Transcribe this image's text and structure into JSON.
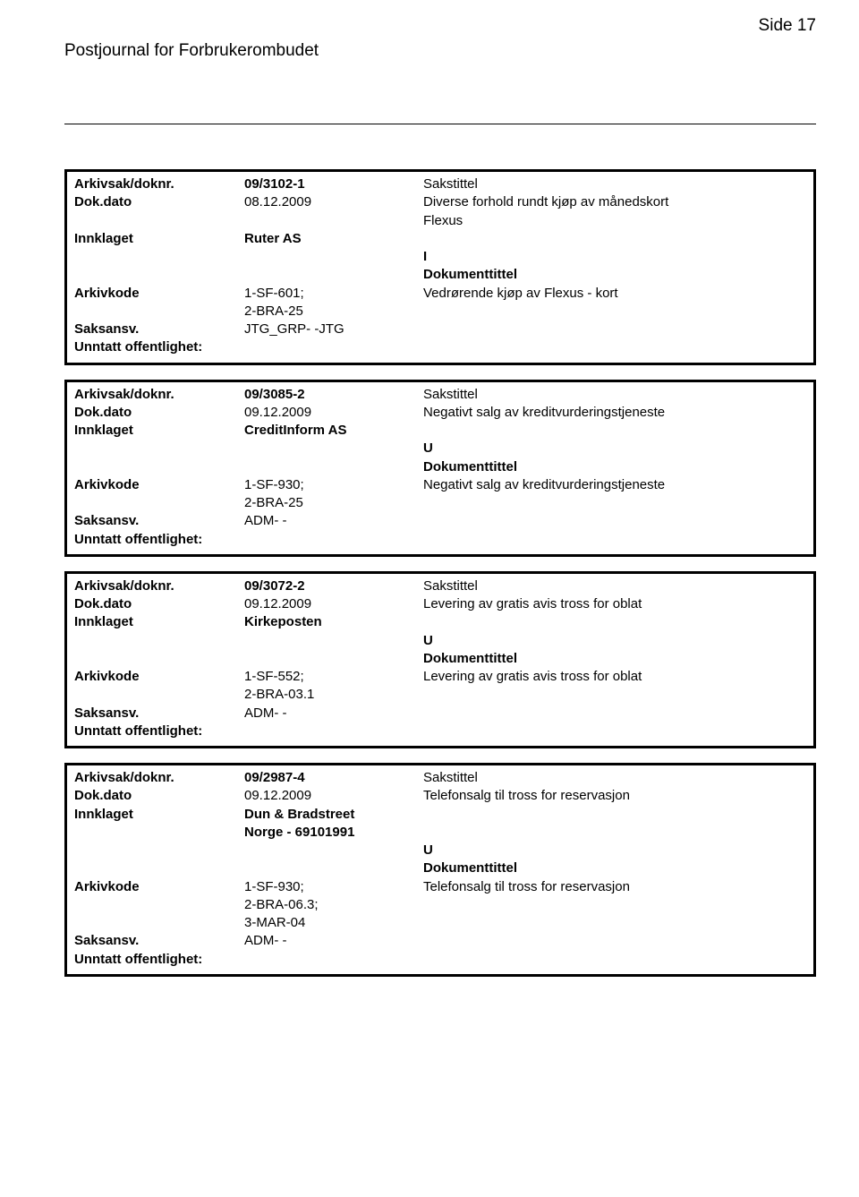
{
  "header": {
    "title": "Postjournal for Forbrukerombudet",
    "page_label": "Side 17"
  },
  "records": [
    {
      "arkivsak_label": "Arkivsak/doknr.",
      "arkivsak_value": "09/3102-1",
      "sakstittel_label": "Sakstittel",
      "dokdato_label": "Dok.dato",
      "dokdato_value": "08.12.2009",
      "sakstittel_text_lines": [
        "Diverse forhold rundt kjøp av månedskort",
        "Flexus"
      ],
      "innklaget_label": "Innklaget",
      "innklaget_value": "Ruter AS",
      "type_code": "I",
      "dokumenttittel_label": "Dokumenttittel",
      "arkivkode_label": "Arkivkode",
      "arkivkode_lines": [
        "1-SF-601;",
        "2-BRA-25"
      ],
      "dokumenttittel_text": "Vedrørende kjøp av Flexus - kort",
      "saksansv_label": "Saksansv.",
      "saksansv_value": "JTG_GRP- -JTG",
      "unntatt_label": "Unntatt offentlighet:"
    },
    {
      "arkivsak_label": "Arkivsak/doknr.",
      "arkivsak_value": "09/3085-2",
      "sakstittel_label": "Sakstittel",
      "dokdato_label": "Dok.dato",
      "dokdato_value": "09.12.2009",
      "sakstittel_text_lines": [
        "Negativt salg av kreditvurderingstjeneste"
      ],
      "innklaget_label": "Innklaget",
      "innklaget_value": "CreditInform AS",
      "type_code": "U",
      "dokumenttittel_label": "Dokumenttittel",
      "arkivkode_label": "Arkivkode",
      "arkivkode_lines": [
        "1-SF-930;",
        "2-BRA-25"
      ],
      "dokumenttittel_text": "Negativt salg av kreditvurderingstjeneste",
      "saksansv_label": "Saksansv.",
      "saksansv_value": "ADM- -",
      "unntatt_label": "Unntatt offentlighet:"
    },
    {
      "arkivsak_label": "Arkivsak/doknr.",
      "arkivsak_value": "09/3072-2",
      "sakstittel_label": "Sakstittel",
      "dokdato_label": "Dok.dato",
      "dokdato_value": "09.12.2009",
      "sakstittel_text_lines": [
        "Levering av gratis avis tross for oblat"
      ],
      "innklaget_label": "Innklaget",
      "innklaget_value": "Kirkeposten",
      "type_code": "U",
      "dokumenttittel_label": "Dokumenttittel",
      "arkivkode_label": "Arkivkode",
      "arkivkode_lines": [
        "1-SF-552;",
        "2-BRA-03.1"
      ],
      "dokumenttittel_text": "Levering av gratis avis tross for oblat",
      "saksansv_label": "Saksansv.",
      "saksansv_value": "ADM- -",
      "unntatt_label": "Unntatt offentlighet:"
    },
    {
      "arkivsak_label": "Arkivsak/doknr.",
      "arkivsak_value": "09/2987-4",
      "sakstittel_label": "Sakstittel",
      "dokdato_label": "Dok.dato",
      "dokdato_value": "09.12.2009",
      "sakstittel_text_lines": [
        "Telefonsalg til tross for reservasjon"
      ],
      "innklaget_label": "Innklaget",
      "innklaget_value": "Dun & Bradstreet",
      "innklaget_value_line2": "Norge - 69101991",
      "type_code": "U",
      "dokumenttittel_label": "Dokumenttittel",
      "arkivkode_label": "Arkivkode",
      "arkivkode_lines": [
        "1-SF-930;",
        "2-BRA-06.3;",
        "3-MAR-04"
      ],
      "dokumenttittel_text": "Telefonsalg til tross for reservasjon",
      "saksansv_label": "Saksansv.",
      "saksansv_value": "ADM- -",
      "unntatt_label": "Unntatt offentlighet:"
    }
  ]
}
